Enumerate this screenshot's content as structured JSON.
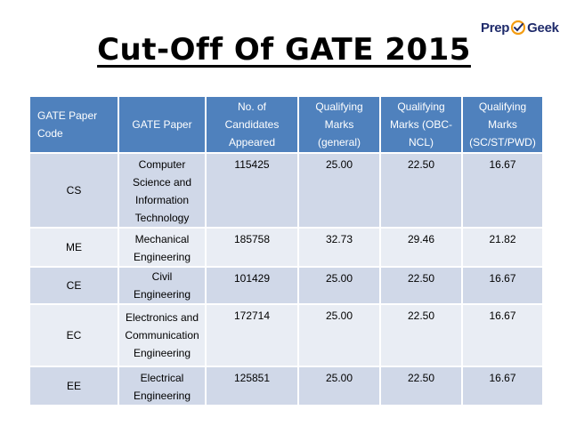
{
  "logo": {
    "part1": "Prep",
    "part2": "Geek"
  },
  "title": "Cut-Off Of GATE 2015",
  "table": {
    "headers": [
      "GATE Paper Code",
      "GATE Paper",
      "No. of Candidates Appeared",
      "Qualifying Marks (general)",
      "Qualifying Marks (OBC-NCL)",
      "Qualifying Marks (SC/ST/PWD)"
    ],
    "rows": [
      {
        "code": "CS",
        "paper": "Computer Science and Information Technology",
        "candidates": "115425",
        "general": "25.00",
        "obc": "22.50",
        "sc": "16.67"
      },
      {
        "code": "ME",
        "paper": "Mechanical Engineering",
        "candidates": "185758",
        "general": "32.73",
        "obc": "29.46",
        "sc": "21.82"
      },
      {
        "code": "CE",
        "paper": "Civil Engineering",
        "candidates": "101429",
        "general": "25.00",
        "obc": "22.50",
        "sc": "16.67"
      },
      {
        "code": "EC",
        "paper": "Electronics and Communication Engineering",
        "candidates": "172714",
        "general": "25.00",
        "obc": "22.50",
        "sc": "16.67"
      },
      {
        "code": "EE",
        "paper": "Electrical Engineering",
        "candidates": "125851",
        "general": "25.00",
        "obc": "22.50",
        "sc": "16.67"
      }
    ]
  },
  "colors": {
    "header_bg": "#4f81bd",
    "row_odd": "#d0d8e8",
    "row_even": "#e9edf4",
    "logo_text": "#1f2b6b",
    "logo_accent": "#f39c12"
  }
}
